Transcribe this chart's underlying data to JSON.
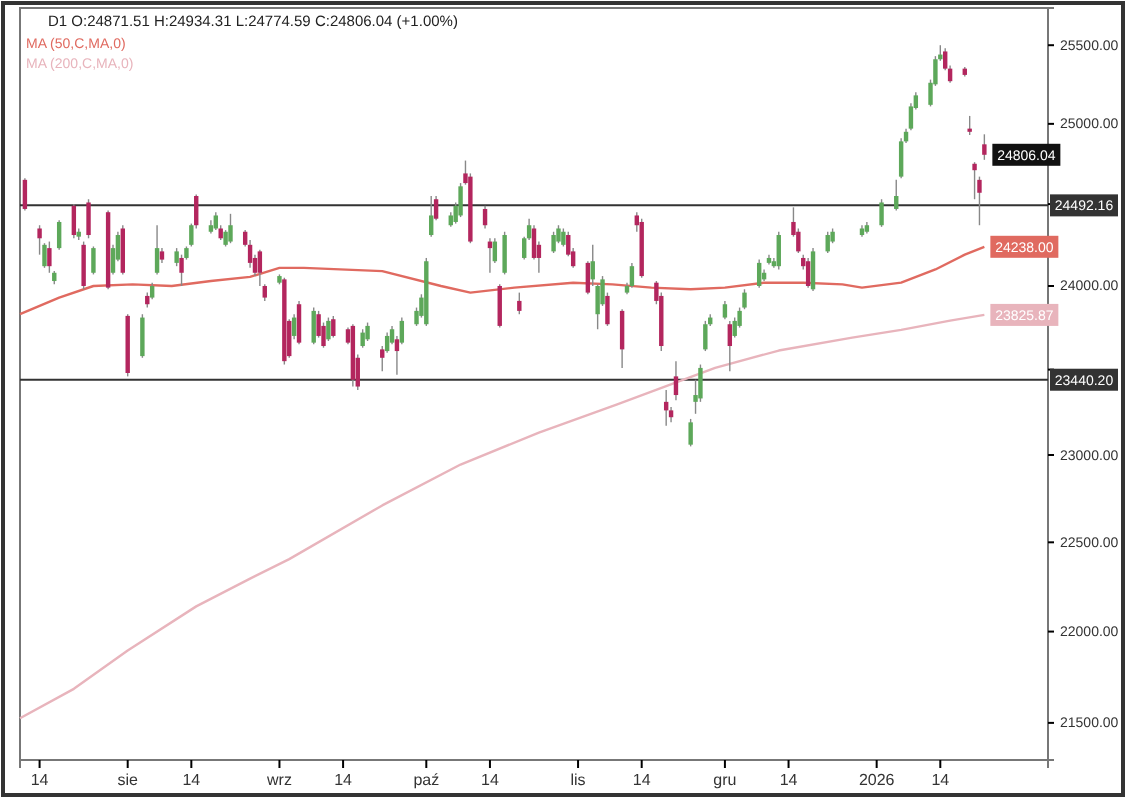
{
  "chart_data": {
    "type": "candlestick",
    "title": "D1 O:24871.51 H:24934.31 L:24774.59 C:24806.04 (+1.00%)",
    "log": true,
    "legend": "top left",
    "xlim": [
      "2025-07-10",
      "2026-02-05"
    ],
    "ylim": [
      21300,
      25740
    ],
    "xticks": [
      {
        "value": "2025-07-14",
        "label": "14"
      },
      {
        "value": "2025-08-01",
        "label": "sie"
      },
      {
        "value": "2025-08-14",
        "label": "14"
      },
      {
        "value": "2025-09-01",
        "label": "wrz"
      },
      {
        "value": "2025-09-14",
        "label": "14"
      },
      {
        "value": "2025-10-01",
        "label": "paź"
      },
      {
        "value": "2025-10-14",
        "label": "14"
      },
      {
        "value": "2025-11-01",
        "label": "lis"
      },
      {
        "value": "2025-11-14",
        "label": "14"
      },
      {
        "value": "2025-12-01",
        "label": "gru"
      },
      {
        "value": "2025-12-14",
        "label": "14"
      },
      {
        "value": "2026-01-01",
        "label": "2026"
      },
      {
        "value": "2026-01-14",
        "label": "14"
      }
    ],
    "yticks": [
      {
        "value": 21500,
        "label": "21500.00"
      },
      {
        "value": 22000,
        "label": "22000.00"
      },
      {
        "value": 22500,
        "label": "22500.00"
      },
      {
        "value": 23000,
        "label": "23000.00"
      },
      {
        "value": 23500,
        "label": null
      },
      {
        "value": 24000,
        "label": "24000.00"
      },
      {
        "value": 24500,
        "label": null
      },
      {
        "value": 25000,
        "label": "25000.00"
      },
      {
        "value": 25500,
        "label": "25500.00"
      }
    ],
    "x": [
      "2025-07-11",
      "2025-07-14",
      "2025-07-15",
      "2025-07-16",
      "2025-07-17",
      "2025-07-18",
      "2025-07-21",
      "2025-07-22",
      "2025-07-23",
      "2025-07-24",
      "2025-07-25",
      "2025-07-28",
      "2025-07-29",
      "2025-07-30",
      "2025-07-31",
      "2025-08-01",
      "2025-08-04",
      "2025-08-05",
      "2025-08-06",
      "2025-08-07",
      "2025-08-08",
      "2025-08-11",
      "2025-08-12",
      "2025-08-13",
      "2025-08-14",
      "2025-08-15",
      "2025-08-18",
      "2025-08-19",
      "2025-08-20",
      "2025-08-21",
      "2025-08-22",
      "2025-08-25",
      "2025-08-26",
      "2025-08-27",
      "2025-08-28",
      "2025-08-29",
      "2025-09-01",
      "2025-09-02",
      "2025-09-03",
      "2025-09-04",
      "2025-09-05",
      "2025-09-08",
      "2025-09-09",
      "2025-09-10",
      "2025-09-11",
      "2025-09-12",
      "2025-09-15",
      "2025-09-16",
      "2025-09-17",
      "2025-09-18",
      "2025-09-19",
      "2025-09-22",
      "2025-09-23",
      "2025-09-24",
      "2025-09-25",
      "2025-09-26",
      "2025-09-29",
      "2025-09-30",
      "2025-10-01",
      "2025-10-02",
      "2025-10-03",
      "2025-10-06",
      "2025-10-07",
      "2025-10-08",
      "2025-10-09",
      "2025-10-10",
      "2025-10-13",
      "2025-10-14",
      "2025-10-15",
      "2025-10-16",
      "2025-10-17",
      "2025-10-20",
      "2025-10-21",
      "2025-10-22",
      "2025-10-23",
      "2025-10-24",
      "2025-10-27",
      "2025-10-28",
      "2025-10-29",
      "2025-10-30",
      "2025-10-31",
      "2025-11-03",
      "2025-11-04",
      "2025-11-05",
      "2025-11-06",
      "2025-11-07",
      "2025-11-10",
      "2025-11-11",
      "2025-11-12",
      "2025-11-13",
      "2025-11-14",
      "2025-11-17",
      "2025-11-18",
      "2025-11-19",
      "2025-11-20",
      "2025-11-21",
      "2025-11-24",
      "2025-11-25",
      "2025-11-26",
      "2025-11-27",
      "2025-11-28",
      "2025-12-01",
      "2025-12-02",
      "2025-12-03",
      "2025-12-04",
      "2025-12-05",
      "2025-12-08",
      "2025-12-09",
      "2025-12-10",
      "2025-12-11",
      "2025-12-12",
      "2025-12-15",
      "2025-12-16",
      "2025-12-17",
      "2025-12-18",
      "2025-12-19",
      "2025-12-22",
      "2025-12-23",
      "2025-12-29",
      "2025-12-30",
      "2026-01-02",
      "2026-01-05",
      "2026-01-06",
      "2026-01-07",
      "2026-01-08",
      "2026-01-09",
      "2026-01-12",
      "2026-01-13",
      "2026-01-14",
      "2026-01-15",
      "2026-01-16",
      "2026-01-19",
      "2026-01-20",
      "2026-01-21",
      "2026-01-22",
      "2026-01-23"
    ],
    "ohlc": [
      [
        24650,
        24660,
        24460,
        24470
      ],
      [
        24350,
        24370,
        24190,
        24290
      ],
      [
        24120,
        24260,
        24110,
        24250
      ],
      [
        24230,
        24270,
        24080,
        24120
      ],
      [
        24030,
        24090,
        24010,
        24080
      ],
      [
        24230,
        24400,
        24220,
        24390
      ],
      [
        24490,
        24500,
        24290,
        24310
      ],
      [
        24300,
        24350,
        24280,
        24330
      ],
      [
        24250,
        24270,
        23980,
        24000
      ],
      [
        24510,
        24530,
        24290,
        24310
      ],
      [
        24080,
        24240,
        24070,
        24230
      ],
      [
        24450,
        24460,
        23980,
        23990
      ],
      [
        24080,
        24250,
        24070,
        24230
      ],
      [
        24160,
        24330,
        24150,
        24310
      ],
      [
        24350,
        24370,
        24070,
        24080
      ],
      [
        23820,
        23830,
        23460,
        23480
      ],
      [
        23580,
        23830,
        23570,
        23810
      ],
      [
        23940,
        23960,
        23870,
        23890
      ],
      [
        23930,
        24020,
        23920,
        24000
      ],
      [
        24080,
        24370,
        24070,
        24230
      ],
      [
        24210,
        24230,
        24140,
        24160
      ],
      [
        24140,
        24230,
        24120,
        24210
      ],
      [
        24170,
        24190,
        24000,
        24080
      ],
      [
        24170,
        24240,
        24160,
        24230
      ],
      [
        24250,
        24380,
        24240,
        24370
      ],
      [
        24550,
        24560,
        24350,
        24370
      ],
      [
        24330,
        24400,
        24320,
        24370
      ],
      [
        24350,
        24450,
        24340,
        24430
      ],
      [
        24350,
        24370,
        24280,
        24290
      ],
      [
        24250,
        24340,
        24240,
        24330
      ],
      [
        24270,
        24440,
        24260,
        24370
      ],
      [
        24330,
        24340,
        24240,
        24250
      ],
      [
        24250,
        24280,
        24110,
        24140
      ],
      [
        24170,
        24190,
        24060,
        24080
      ],
      [
        24210,
        24220,
        24000,
        24080
      ],
      [
        24000,
        24010,
        23910,
        23930
      ],
      [
        24020,
        24070,
        24010,
        24060
      ],
      [
        24040,
        24050,
        23530,
        23550
      ],
      [
        23790,
        23800,
        23570,
        23580
      ],
      [
        23700,
        23830,
        23680,
        23810
      ],
      [
        23890,
        23910,
        23650,
        23660
      ],
      [
        23660,
        23870,
        23650,
        23850
      ],
      [
        23830,
        23850,
        23690,
        23700
      ],
      [
        23760,
        23780,
        23630,
        23640
      ],
      [
        23680,
        23810,
        23670,
        23790
      ],
      [
        23800,
        23820,
        23690,
        23700
      ],
      [
        23740,
        23750,
        23650,
        23660
      ],
      [
        23760,
        23770,
        23400,
        23440
      ],
      [
        23570,
        23590,
        23380,
        23400
      ],
      [
        23640,
        23740,
        23630,
        23720
      ],
      [
        23680,
        23780,
        23670,
        23760
      ],
      [
        23620,
        23640,
        23490,
        23570
      ],
      [
        23610,
        23720,
        23600,
        23700
      ],
      [
        23660,
        23760,
        23650,
        23740
      ],
      [
        23680,
        23700,
        23470,
        23610
      ],
      [
        23660,
        23810,
        23650,
        23790
      ],
      [
        23770,
        23870,
        23760,
        23850
      ],
      [
        23820,
        23950,
        23810,
        23930
      ],
      [
        23770,
        24170,
        23760,
        24150
      ],
      [
        24310,
        24550,
        24300,
        24430
      ],
      [
        24530,
        24550,
        24400,
        24410
      ],
      [
        24370,
        24450,
        24360,
        24430
      ],
      [
        24390,
        24510,
        24380,
        24490
      ],
      [
        24430,
        24630,
        24420,
        24610
      ],
      [
        24690,
        24770,
        24620,
        24630
      ],
      [
        24670,
        24690,
        24260,
        24270
      ],
      [
        24470,
        24490,
        24350,
        24370
      ],
      [
        24270,
        24290,
        24080,
        24230
      ],
      [
        24150,
        24290,
        24140,
        24270
      ],
      [
        24000,
        24010,
        23750,
        23760
      ],
      [
        24080,
        24330,
        24070,
        24310
      ],
      [
        23910,
        23960,
        23830,
        23850
      ],
      [
        24170,
        24300,
        24160,
        24290
      ],
      [
        24290,
        24410,
        24280,
        24370
      ],
      [
        24350,
        24370,
        24160,
        24170
      ],
      [
        24250,
        24270,
        24080,
        24170
      ],
      [
        24210,
        24330,
        24200,
        24310
      ],
      [
        24270,
        24370,
        24260,
        24350
      ],
      [
        24250,
        24350,
        24240,
        24330
      ],
      [
        24310,
        24330,
        24180,
        24190
      ],
      [
        24210,
        24230,
        24110,
        24120
      ],
      [
        24140,
        24150,
        23950,
        23960
      ],
      [
        24040,
        24250,
        24000,
        24150
      ],
      [
        23830,
        24010,
        23740,
        24000
      ],
      [
        23890,
        24060,
        23880,
        24040
      ],
      [
        23940,
        23960,
        23760,
        23770
      ],
      [
        23850,
        23860,
        23510,
        23620
      ],
      [
        23960,
        24020,
        23950,
        24000
      ],
      [
        24000,
        24140,
        23990,
        24120
      ],
      [
        24430,
        24450,
        24330,
        24370
      ],
      [
        24390,
        24410,
        24050,
        24060
      ],
      [
        24020,
        24030,
        23890,
        23910
      ],
      [
        23940,
        23960,
        23610,
        23640
      ],
      [
        23310,
        23380,
        23170,
        23260
      ],
      [
        23260,
        23280,
        23190,
        23220
      ],
      [
        23460,
        23550,
        23320,
        23350
      ],
      [
        23060,
        23210,
        23050,
        23190
      ],
      [
        23310,
        23440,
        23240,
        23350
      ],
      [
        23330,
        23530,
        23310,
        23510
      ],
      [
        23620,
        23790,
        23610,
        23770
      ],
      [
        23770,
        23830,
        23760,
        23810
      ],
      [
        23810,
        23910,
        23800,
        23890
      ],
      [
        23770,
        23790,
        23490,
        23640
      ],
      [
        23700,
        23810,
        23690,
        23790
      ],
      [
        23760,
        23870,
        23750,
        23850
      ],
      [
        23870,
        23980,
        23860,
        23960
      ],
      [
        24000,
        24160,
        23990,
        24140
      ],
      [
        24040,
        24100,
        24030,
        24080
      ],
      [
        24140,
        24190,
        24130,
        24170
      ],
      [
        24120,
        24170,
        24110,
        24150
      ],
      [
        24120,
        24330,
        24100,
        24310
      ],
      [
        24390,
        24480,
        24300,
        24310
      ],
      [
        24330,
        24350,
        24200,
        24210
      ],
      [
        24170,
        24190,
        24100,
        24120
      ],
      [
        24150,
        24170,
        23990,
        24000
      ],
      [
        23980,
        24230,
        23970,
        24210
      ],
      [
        24210,
        24330,
        24200,
        24310
      ],
      [
        24270,
        24350,
        24260,
        24330
      ],
      [
        24310,
        24370,
        24300,
        24350
      ],
      [
        24330,
        24390,
        24320,
        24370
      ],
      [
        24370,
        24530,
        24360,
        24510
      ],
      [
        24470,
        24650,
        24460,
        24550
      ],
      [
        24670,
        24910,
        24660,
        24890
      ],
      [
        24890,
        24970,
        24880,
        24950
      ],
      [
        24970,
        25130,
        24960,
        25110
      ],
      [
        25100,
        25200,
        25090,
        25180
      ],
      [
        25120,
        25280,
        25110,
        25260
      ],
      [
        25250,
        25430,
        25240,
        25410
      ],
      [
        25410,
        25500,
        25400,
        25440
      ],
      [
        25460,
        25480,
        25340,
        25350
      ],
      [
        25350,
        25370,
        25260,
        25270
      ],
      [
        25350,
        25360,
        25300,
        25310
      ],
      [
        24970,
        25050,
        24930,
        24950
      ],
      [
        24750,
        24760,
        24530,
        24710
      ],
      [
        24650,
        24670,
        24370,
        24570
      ],
      [
        24871.51,
        24934.31,
        24774.59,
        24806.04
      ]
    ],
    "series": [
      {
        "type": "line",
        "name": "MA (50,C,MA,0)",
        "color": "#e06a60",
        "x": [
          "2025-07-10",
          "2025-07-18",
          "2025-07-25",
          "2025-08-02",
          "2025-08-10",
          "2025-08-18",
          "2025-08-26",
          "2025-09-01",
          "2025-09-06",
          "2025-09-22",
          "2025-10-04",
          "2025-10-10",
          "2025-10-19",
          "2025-10-31",
          "2025-11-08",
          "2025-11-16",
          "2025-11-24",
          "2025-12-01",
          "2025-12-09",
          "2025-12-17",
          "2025-12-25",
          "2025-12-29",
          "2026-01-06",
          "2026-01-13",
          "2026-01-19",
          "2026-01-23"
        ],
        "values": [
          23830,
          23930,
          24000,
          24010,
          24000,
          24030,
          24055,
          24110,
          24110,
          24090,
          24000,
          23960,
          23990,
          24020,
          24010,
          23990,
          23980,
          23990,
          24020,
          24020,
          24010,
          23990,
          24020,
          24100,
          24190,
          24238.0
        ],
        "value_labels": [
          null,
          null,
          null,
          null,
          null,
          null,
          null,
          null,
          null,
          null,
          null,
          null,
          null,
          null,
          null,
          null,
          null,
          null,
          null,
          null,
          null,
          null,
          null,
          null,
          null,
          "24238.00"
        ]
      },
      {
        "type": "line",
        "name": "MA (200,C,MA,0)",
        "color": "#e8b4bc",
        "x": [
          "2025-07-10",
          "2025-07-21",
          "2025-08-01",
          "2025-08-15",
          "2025-08-26",
          "2025-09-03",
          "2025-09-22",
          "2025-10-08",
          "2025-10-24",
          "2025-11-09",
          "2025-11-29",
          "2025-12-12",
          "2025-12-27",
          "2026-01-06",
          "2026-01-16",
          "2026-01-23"
        ],
        "values": [
          21525,
          21685,
          21895,
          22140,
          22295,
          22405,
          22710,
          22945,
          23130,
          23295,
          23510,
          23613,
          23690,
          23736,
          23792,
          23825.87
        ],
        "value_labels": [
          null,
          null,
          null,
          null,
          null,
          null,
          null,
          null,
          null,
          null,
          null,
          null,
          null,
          null,
          null,
          "23825.87"
        ]
      }
    ],
    "ref_lines": [
      {
        "axis": "y",
        "value": 24492.16,
        "label": "24492.16",
        "color": "#333333"
      },
      {
        "axis": "y",
        "value": 23440.2,
        "label": "23440.20",
        "color": "#333333"
      }
    ],
    "annotations": [
      {
        "text": "24806.04",
        "x": "2026-01-23",
        "y": 24806.04
      }
    ]
  }
}
